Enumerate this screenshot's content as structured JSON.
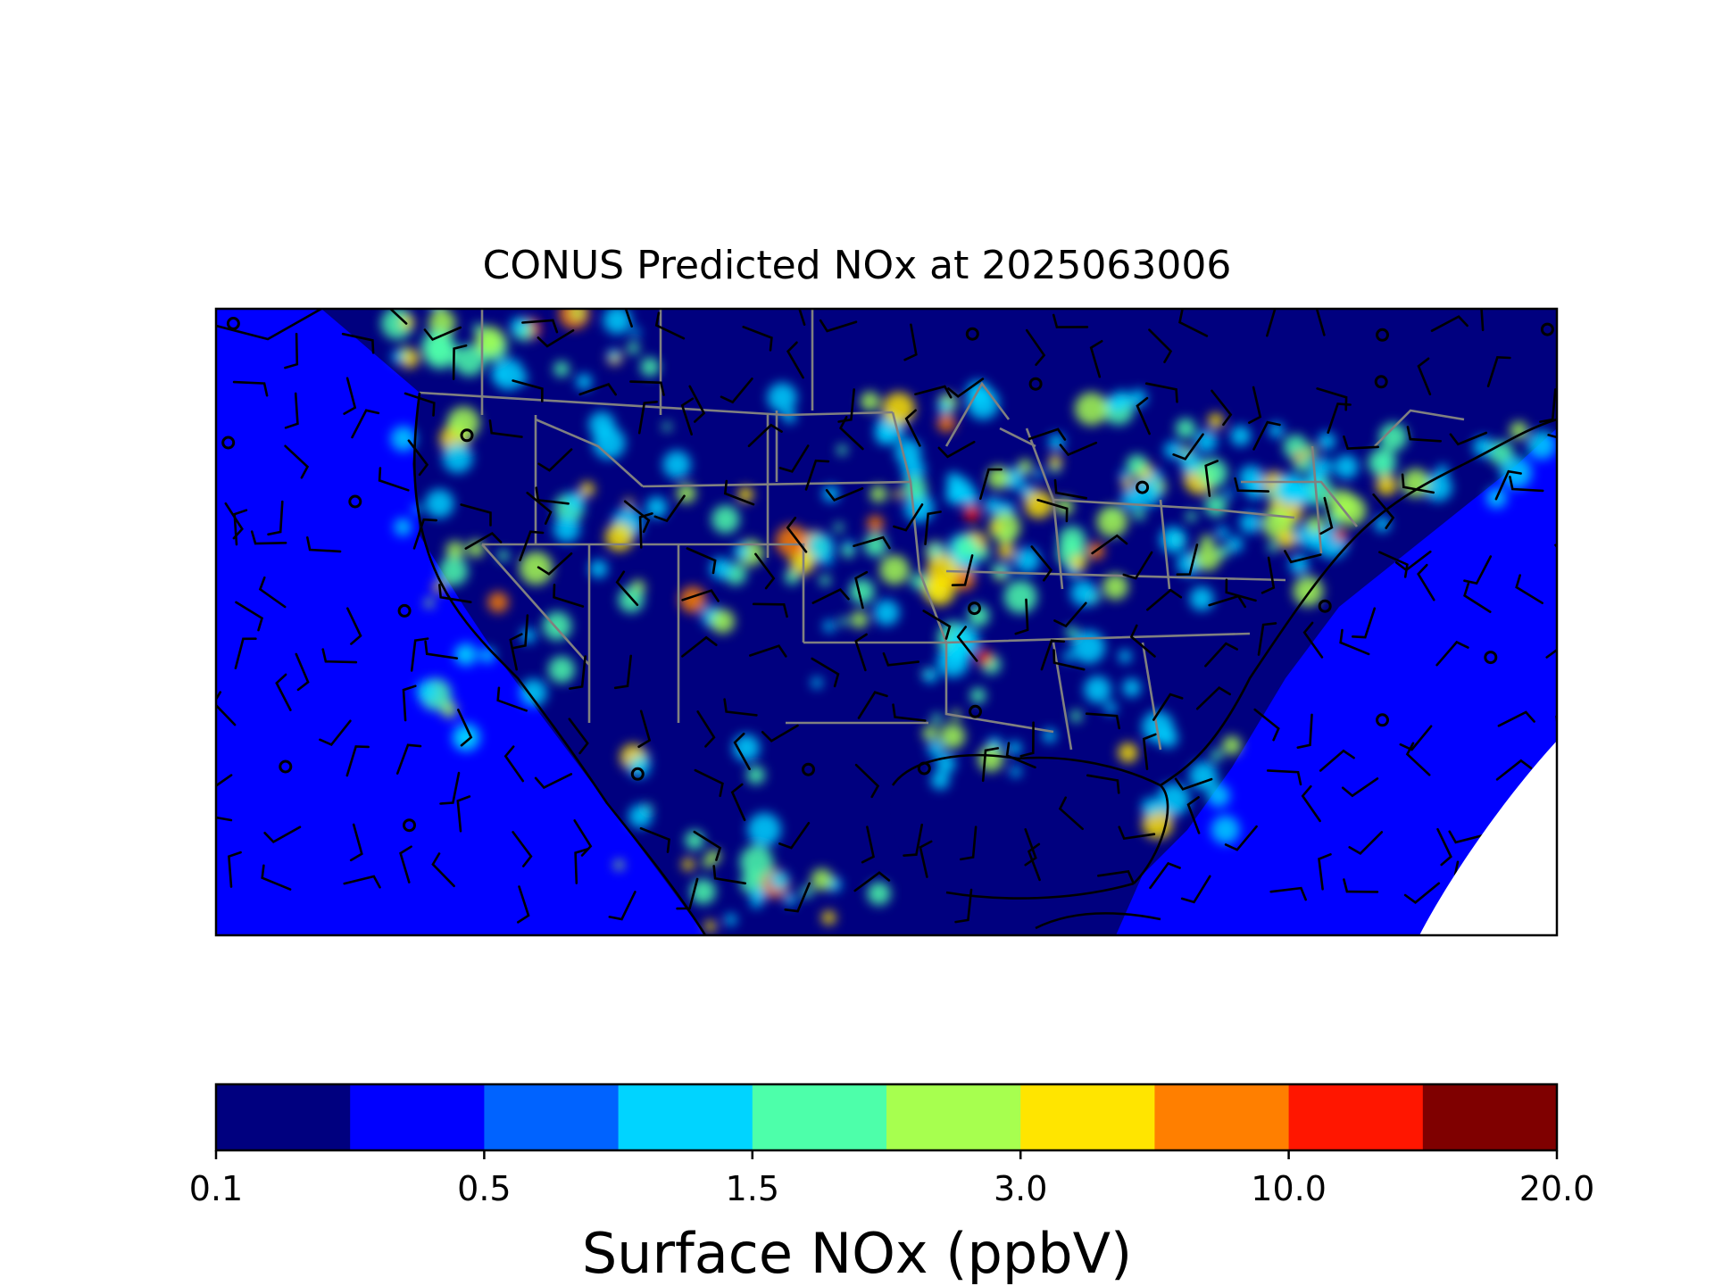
{
  "title": "CONUS Predicted NOx at 2025063006",
  "colorbar": {
    "label": "Surface NOx (ppbV)",
    "tick_labels": [
      "0.1",
      "0.5",
      "1.5",
      "3.0",
      "10.0",
      "20.0"
    ],
    "colors": [
      "#00007f",
      "#0000ff",
      "#0063ff",
      "#00d4ff",
      "#4dffaa",
      "#a7ff4f",
      "#ffe500",
      "#ff7f00",
      "#ff1600",
      "#7f0000"
    ]
  },
  "map": {
    "background_color": "#00007f",
    "ocean_color": "#0000ff",
    "land_color": "#00007f",
    "state_border_color": "#808080",
    "coastline_color": "#000000",
    "wind_barb_color": "#000000",
    "hotspot_colors": [
      "#00d4ff",
      "#4dffaa",
      "#a7ff4f",
      "#ffe500",
      "#ff7f00",
      "#ff1600"
    ]
  }
}
